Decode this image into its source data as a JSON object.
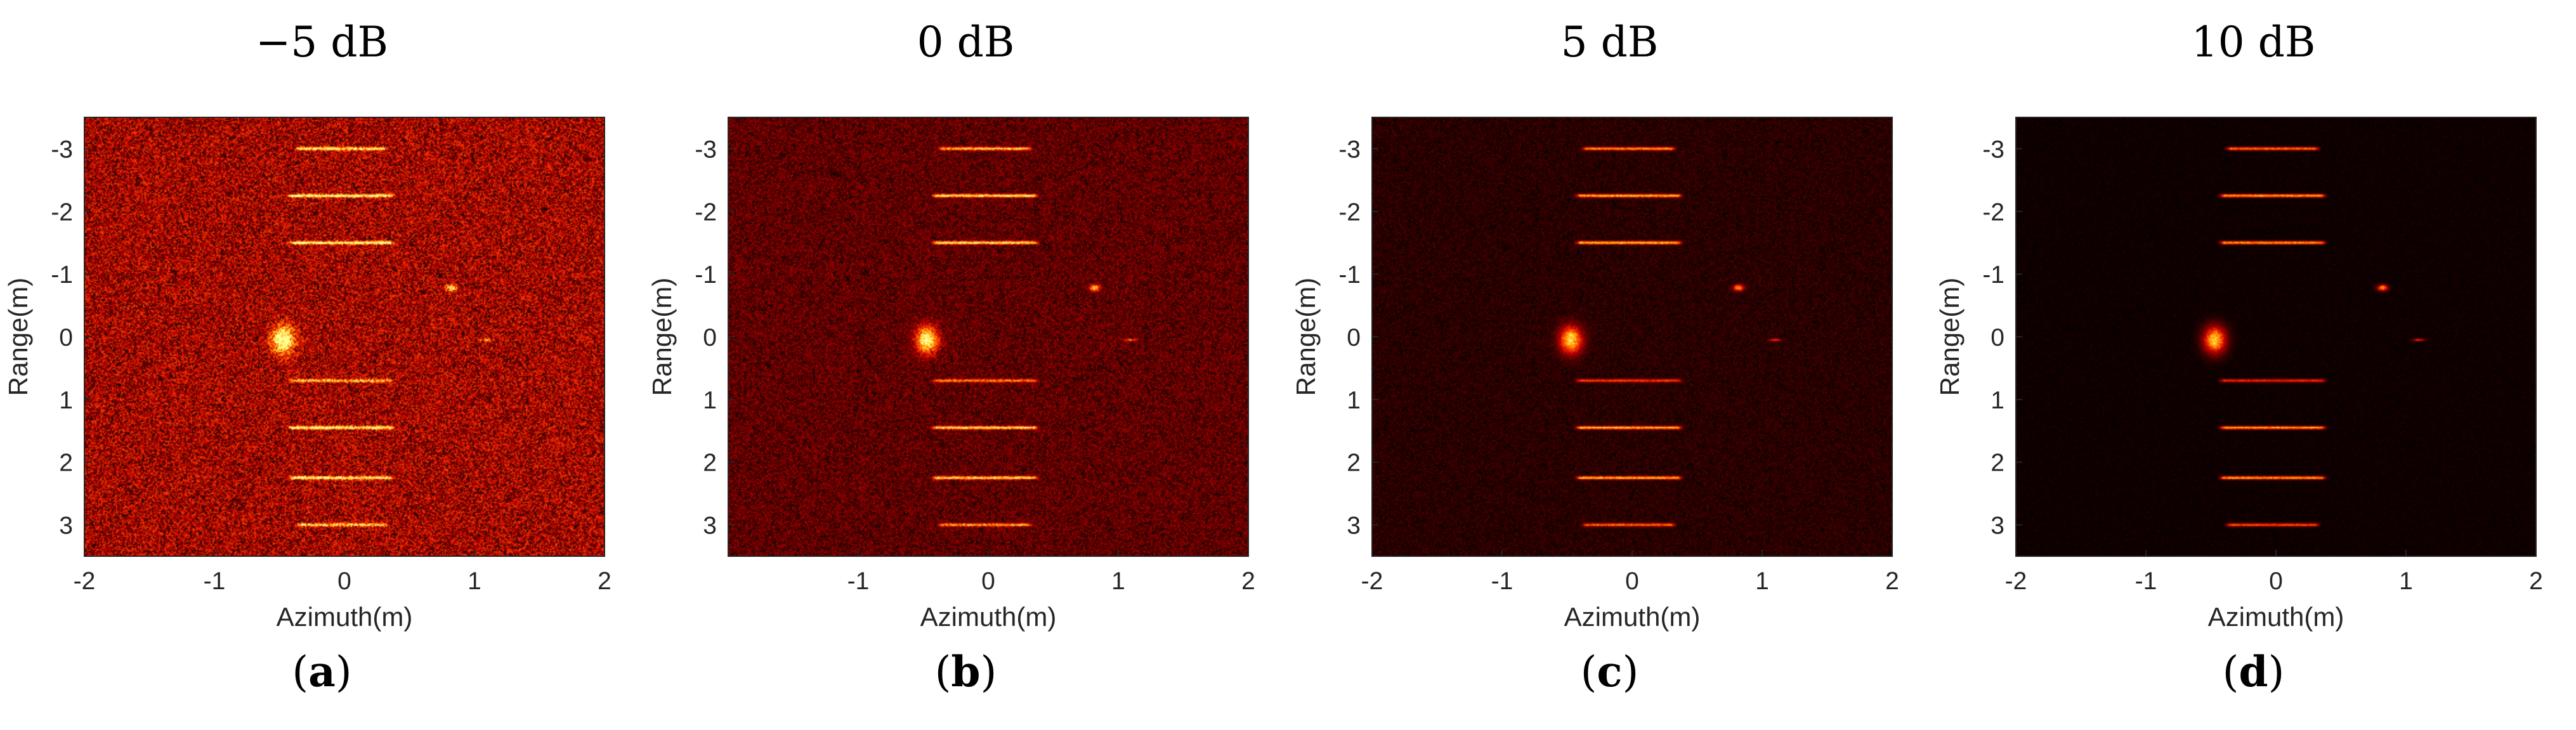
{
  "chart_data": [
    {
      "type": "heatmap",
      "title": "−5 dB",
      "panel_label": "a",
      "xlabel": "Azimuth(m)",
      "ylabel": "Range(m)",
      "xlim": [
        -2,
        2
      ],
      "ylim": [
        -3.5,
        3.5
      ],
      "y_reversed": true,
      "xticks": [
        -2,
        -1,
        0,
        1,
        2
      ],
      "yticks": [
        -3,
        -2,
        -1,
        0,
        1,
        2,
        3
      ],
      "noise_level": 0.55,
      "colormap": [
        "#000000",
        "#5a0000",
        "#b40000",
        "#ff3a00",
        "#ffb000",
        "#ffff90"
      ],
      "targets": [
        {
          "kind": "hline",
          "y": -3.0,
          "x0": -0.35,
          "x1": 0.3,
          "intensity": 0.8
        },
        {
          "kind": "hline",
          "y": -2.25,
          "x0": -0.4,
          "x1": 0.35,
          "intensity": 0.9
        },
        {
          "kind": "hline",
          "y": -1.5,
          "x0": -0.4,
          "x1": 0.35,
          "intensity": 0.9
        },
        {
          "kind": "hline",
          "y": 0.7,
          "x0": -0.4,
          "x1": 0.35,
          "intensity": 0.6
        },
        {
          "kind": "hline",
          "y": 1.45,
          "x0": -0.4,
          "x1": 0.35,
          "intensity": 0.9
        },
        {
          "kind": "hline",
          "y": 2.25,
          "x0": -0.4,
          "x1": 0.35,
          "intensity": 0.9
        },
        {
          "kind": "hline",
          "y": 3.0,
          "x0": -0.35,
          "x1": 0.3,
          "intensity": 0.7
        },
        {
          "kind": "blob",
          "x": -0.47,
          "y": 0.05,
          "w": 0.22,
          "h": 0.55,
          "intensity": 1.0
        },
        {
          "kind": "blob",
          "x": 0.82,
          "y": -0.78,
          "w": 0.1,
          "h": 0.12,
          "intensity": 0.9
        },
        {
          "kind": "blob",
          "x": 1.1,
          "y": 0.05,
          "w": 0.12,
          "h": 0.05,
          "intensity": 0.6
        }
      ]
    },
    {
      "type": "heatmap",
      "title": "0 dB",
      "panel_label": "b",
      "xlabel": "Azimuth(m)",
      "ylabel": "Range(m)",
      "xlim": [
        -2,
        2
      ],
      "ylim": [
        -3.5,
        3.5
      ],
      "y_reversed": true,
      "xticks": [
        -1,
        0,
        1,
        2
      ],
      "yticks": [
        -3,
        -2,
        -1,
        0,
        1,
        2,
        3
      ],
      "noise_level": 0.32,
      "colormap": [
        "#000000",
        "#5a0000",
        "#b40000",
        "#ff3a00",
        "#ffb000",
        "#ffff90"
      ],
      "targets": [
        {
          "kind": "hline",
          "y": -3.0,
          "x0": -0.35,
          "x1": 0.3,
          "intensity": 0.8
        },
        {
          "kind": "hline",
          "y": -2.25,
          "x0": -0.4,
          "x1": 0.35,
          "intensity": 0.9
        },
        {
          "kind": "hline",
          "y": -1.5,
          "x0": -0.4,
          "x1": 0.35,
          "intensity": 0.9
        },
        {
          "kind": "hline",
          "y": 0.7,
          "x0": -0.4,
          "x1": 0.35,
          "intensity": 0.6
        },
        {
          "kind": "hline",
          "y": 1.45,
          "x0": -0.4,
          "x1": 0.35,
          "intensity": 0.9
        },
        {
          "kind": "hline",
          "y": 2.25,
          "x0": -0.4,
          "x1": 0.35,
          "intensity": 0.9
        },
        {
          "kind": "hline",
          "y": 3.0,
          "x0": -0.35,
          "x1": 0.3,
          "intensity": 0.7
        },
        {
          "kind": "blob",
          "x": -0.47,
          "y": 0.05,
          "w": 0.22,
          "h": 0.55,
          "intensity": 1.0
        },
        {
          "kind": "blob",
          "x": 0.82,
          "y": -0.78,
          "w": 0.1,
          "h": 0.12,
          "intensity": 0.9
        },
        {
          "kind": "blob",
          "x": 1.1,
          "y": 0.05,
          "w": 0.12,
          "h": 0.05,
          "intensity": 0.6
        }
      ]
    },
    {
      "type": "heatmap",
      "title": "5 dB",
      "panel_label": "c",
      "xlabel": "Azimuth(m)",
      "ylabel": "Range(m)",
      "xlim": [
        -2,
        2
      ],
      "ylim": [
        -3.5,
        3.5
      ],
      "y_reversed": true,
      "xticks": [
        -2,
        -1,
        0,
        1,
        2
      ],
      "yticks": [
        -3,
        -2,
        -1,
        0,
        1,
        2,
        3
      ],
      "noise_level": 0.14,
      "colormap": [
        "#000000",
        "#5a0000",
        "#b40000",
        "#ff3a00",
        "#ffb000",
        "#ffff90"
      ],
      "targets": [
        {
          "kind": "hline",
          "y": -3.0,
          "x0": -0.35,
          "x1": 0.3,
          "intensity": 0.8
        },
        {
          "kind": "hline",
          "y": -2.25,
          "x0": -0.4,
          "x1": 0.35,
          "intensity": 0.9
        },
        {
          "kind": "hline",
          "y": -1.5,
          "x0": -0.4,
          "x1": 0.35,
          "intensity": 0.9
        },
        {
          "kind": "hline",
          "y": 0.7,
          "x0": -0.4,
          "x1": 0.35,
          "intensity": 0.6
        },
        {
          "kind": "hline",
          "y": 1.45,
          "x0": -0.4,
          "x1": 0.35,
          "intensity": 0.9
        },
        {
          "kind": "hline",
          "y": 2.25,
          "x0": -0.4,
          "x1": 0.35,
          "intensity": 0.9
        },
        {
          "kind": "hline",
          "y": 3.0,
          "x0": -0.35,
          "x1": 0.3,
          "intensity": 0.7
        },
        {
          "kind": "blob",
          "x": -0.47,
          "y": 0.05,
          "w": 0.22,
          "h": 0.55,
          "intensity": 1.0
        },
        {
          "kind": "blob",
          "x": 0.82,
          "y": -0.78,
          "w": 0.1,
          "h": 0.12,
          "intensity": 0.9
        },
        {
          "kind": "blob",
          "x": 1.1,
          "y": 0.05,
          "w": 0.12,
          "h": 0.05,
          "intensity": 0.6
        }
      ]
    },
    {
      "type": "heatmap",
      "title": "10 dB",
      "panel_label": "d",
      "xlabel": "Azimuth(m)",
      "ylabel": "Range(m)",
      "xlim": [
        -2,
        2
      ],
      "ylim": [
        -3.5,
        3.5
      ],
      "y_reversed": true,
      "xticks": [
        -2,
        -1,
        0,
        1,
        2
      ],
      "yticks": [
        -3,
        -2,
        -1,
        0,
        1,
        2,
        3
      ],
      "noise_level": 0.05,
      "colormap": [
        "#000000",
        "#5a0000",
        "#b40000",
        "#ff3a00",
        "#ffb000",
        "#ffff90"
      ],
      "targets": [
        {
          "kind": "hline",
          "y": -3.0,
          "x0": -0.35,
          "x1": 0.3,
          "intensity": 0.8
        },
        {
          "kind": "hline",
          "y": -2.25,
          "x0": -0.4,
          "x1": 0.35,
          "intensity": 0.9
        },
        {
          "kind": "hline",
          "y": -1.5,
          "x0": -0.4,
          "x1": 0.35,
          "intensity": 0.9
        },
        {
          "kind": "hline",
          "y": 0.7,
          "x0": -0.4,
          "x1": 0.35,
          "intensity": 0.6
        },
        {
          "kind": "hline",
          "y": 1.45,
          "x0": -0.4,
          "x1": 0.35,
          "intensity": 0.9
        },
        {
          "kind": "hline",
          "y": 2.25,
          "x0": -0.4,
          "x1": 0.35,
          "intensity": 0.9
        },
        {
          "kind": "hline",
          "y": 3.0,
          "x0": -0.35,
          "x1": 0.3,
          "intensity": 0.7
        },
        {
          "kind": "blob",
          "x": -0.47,
          "y": 0.05,
          "w": 0.22,
          "h": 0.55,
          "intensity": 1.0
        },
        {
          "kind": "blob",
          "x": 0.82,
          "y": -0.78,
          "w": 0.1,
          "h": 0.12,
          "intensity": 0.9
        },
        {
          "kind": "blob",
          "x": 1.1,
          "y": 0.05,
          "w": 0.12,
          "h": 0.05,
          "intensity": 0.6
        }
      ]
    }
  ]
}
